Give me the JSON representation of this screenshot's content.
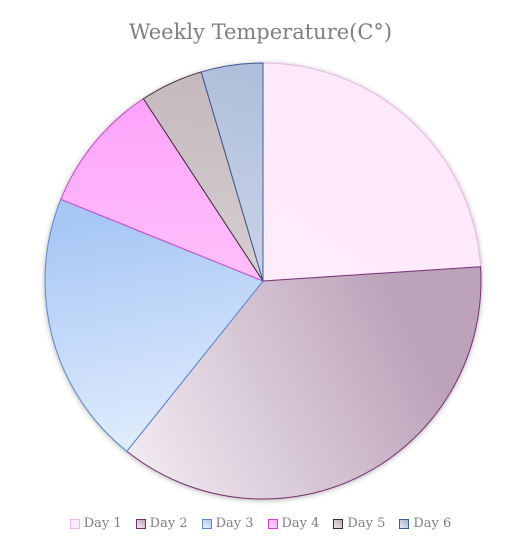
{
  "chart_data": {
    "type": "pie",
    "title": "Weekly Temperature(C°)",
    "categories": [
      "Day 1",
      "Day 2",
      "Day 3",
      "Day 4",
      "Day 5",
      "Day 6"
    ],
    "values": [
      24.1,
      37.0,
      20.5,
      9.7,
      4.7,
      4.6
    ],
    "legend_position": "bottom",
    "colors": {
      "Day 1": {
        "light": "#fff0fc",
        "dark": "#fde6fb",
        "stroke": "#e9b8e6"
      },
      "Day 2": {
        "light": "#f4eef3",
        "dark": "#bca3ba",
        "stroke": "#7a2f74"
      },
      "Day 3": {
        "light": "#eef5ff",
        "dark": "#a8c7f5",
        "stroke": "#5a8ad0"
      },
      "Day 4": {
        "light": "#fde0fb",
        "dark": "#ff99fb",
        "stroke": "#d642cf"
      },
      "Day 5": {
        "light": "#ece9ea",
        "dark": "#b9abb1",
        "stroke": "#3a2f35"
      },
      "Day 6": {
        "light": "#e8edf6",
        "dark": "#9fb0d2",
        "stroke": "#3d5c99"
      }
    }
  }
}
